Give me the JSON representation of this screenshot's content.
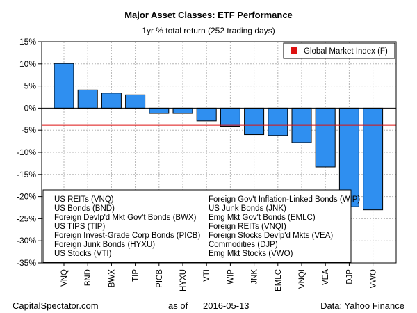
{
  "chart_data": {
    "type": "bar",
    "title": "Major Asset Classes: ETF Performance",
    "subtitle": "1yr % total return (252 trading days)",
    "categories": [
      "VNQ",
      "BND",
      "BWX",
      "TIP",
      "PICB",
      "HYXU",
      "VTI",
      "WIP",
      "JNK",
      "EMLC",
      "VNQI",
      "VEA",
      "DJP",
      "VWO"
    ],
    "values": [
      10.1,
      4.1,
      3.4,
      3.0,
      -1.2,
      -1.2,
      -2.9,
      -4.1,
      -6.0,
      -6.2,
      -7.8,
      -13.3,
      -22.3,
      -23.0
    ],
    "reference_line": {
      "label": "Global Market Index (F)",
      "value": -3.8,
      "color": "#dd1111"
    },
    "ylim": [
      -35,
      15
    ],
    "yticks": [
      15,
      10,
      5,
      0,
      -5,
      -10,
      -15,
      -20,
      -25,
      -30,
      -35
    ],
    "ytick_labels": [
      "15%",
      "10%",
      "5%",
      "0%",
      "-5%",
      "-10%",
      "-15%",
      "-20%",
      "-25%",
      "-30%",
      "-35%"
    ],
    "bar_color": "#2f8ff0",
    "legend": {
      "col1": [
        "US REITs (VNQ)",
        "US Bonds (BND)",
        "Foreign Devlp'd Mkt Gov't Bonds (BWX)",
        "US TIPS (TIP)",
        "Foreign Invest-Grade Corp Bonds (PICB)",
        "Foreign Junk Bonds (HYXU)",
        "US Stocks (VTI)"
      ],
      "col2": [
        "Foreign Gov't Inflation-Linked Bonds (WIP)",
        "US Junk Bonds (JNK)",
        "Emg Mkt Gov't Bonds (EMLC)",
        "Foreign REITs (VNQI)",
        "Foreign Stocks Devlp'd Mkts (VEA)",
        "Commodities (DJP)",
        "Emg Mkt Stocks (VWO)"
      ]
    }
  },
  "footer": {
    "source_left": "CapitalSpectator.com",
    "as_of_label": "as of",
    "date": "2016-05-13",
    "data_source": "Data: Yahoo Finance"
  }
}
